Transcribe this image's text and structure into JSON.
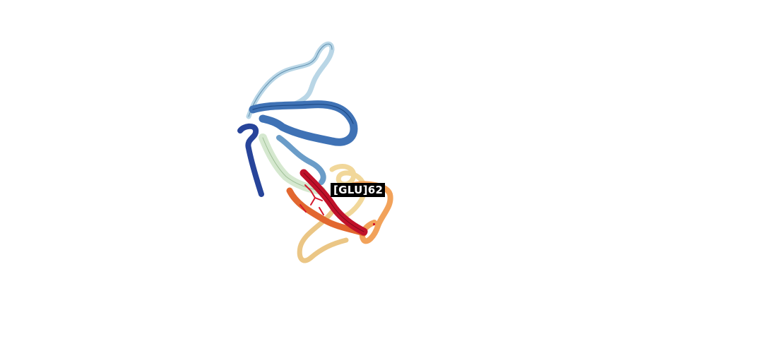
{
  "viewer": {
    "background": "#ffffff",
    "ribbon_colors": [
      "#27449a",
      "#3f72b5",
      "#8cb8d8",
      "#c4dfe9",
      "#d9ead0",
      "#f1d79a",
      "#f2a25a",
      "#e2672f",
      "#c0112a"
    ],
    "selected_residue": {
      "label": "[GLU]62",
      "highlight_color": "#d4172c"
    }
  }
}
